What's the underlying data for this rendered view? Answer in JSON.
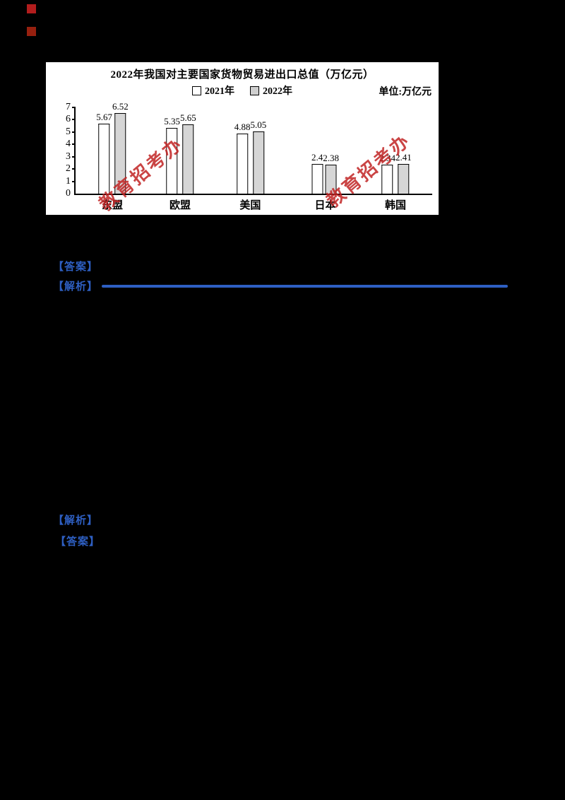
{
  "accents": {
    "red_marker": "#a81d1d",
    "blue_text": "#2e5fc2",
    "watermark_red": "#c12323",
    "bar_2022_fill": "#d6d6d6"
  },
  "watermark": {
    "text": "教育招考办"
  },
  "document": {
    "labels": {
      "answer_1": "【答案】",
      "analysis_1": "【解析】",
      "analysis_2": "【解析】",
      "answer_2": "【答案】"
    }
  },
  "chart_data": {
    "type": "bar",
    "title": "2022年我国对主要国家货物贸易进出口总值（万亿元）",
    "unit_label": "单位:万亿元",
    "legend": [
      "2021年",
      "2022年"
    ],
    "categories": [
      "东盟",
      "欧盟",
      "美国",
      "日本",
      "韩国"
    ],
    "series": [
      {
        "name": "2021",
        "values": [
          5.67,
          5.35,
          4.88,
          2.4,
          2.34
        ]
      },
      {
        "name": "2022",
        "values": [
          6.52,
          5.65,
          5.05,
          2.38,
          2.41
        ]
      }
    ],
    "ylim": [
      0,
      7
    ],
    "yticks": [
      0,
      1,
      2,
      3,
      4,
      5,
      6,
      7
    ],
    "grid": false,
    "legend_position": "top-center",
    "group_positions_pct": [
      10.3,
      29.3,
      49,
      70,
      89.7
    ]
  }
}
